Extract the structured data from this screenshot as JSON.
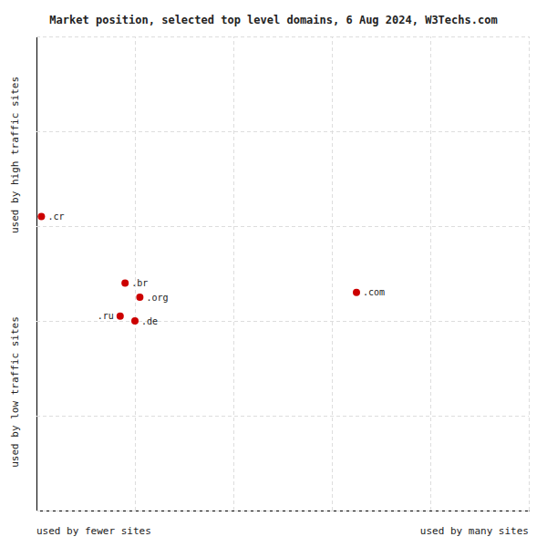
{
  "chart_data": {
    "type": "scatter",
    "title": "Market position, selected top level domains, 6 Aug 2024, W3Techs.com",
    "xlabel": [
      "used by fewer sites",
      "used by many sites"
    ],
    "ylabel": [
      "used by low traffic sites",
      "used by high traffic sites"
    ],
    "labels": [
      ".cr",
      ".br",
      ".org",
      ".ru",
      ".de",
      ".com"
    ],
    "x": [
      1,
      18,
      21,
      17,
      20,
      65
    ],
    "values": [
      62,
      48,
      45,
      41,
      40,
      46
    ],
    "color": "#cc0000",
    "xlim": [
      0,
      100
    ],
    "ylim": [
      0,
      100
    ],
    "xticks": [
      0,
      20,
      40,
      60,
      80,
      100
    ],
    "yticks": [
      0,
      20,
      40,
      60,
      80,
      100
    ],
    "grid": true,
    "tick_labels": false
  }
}
